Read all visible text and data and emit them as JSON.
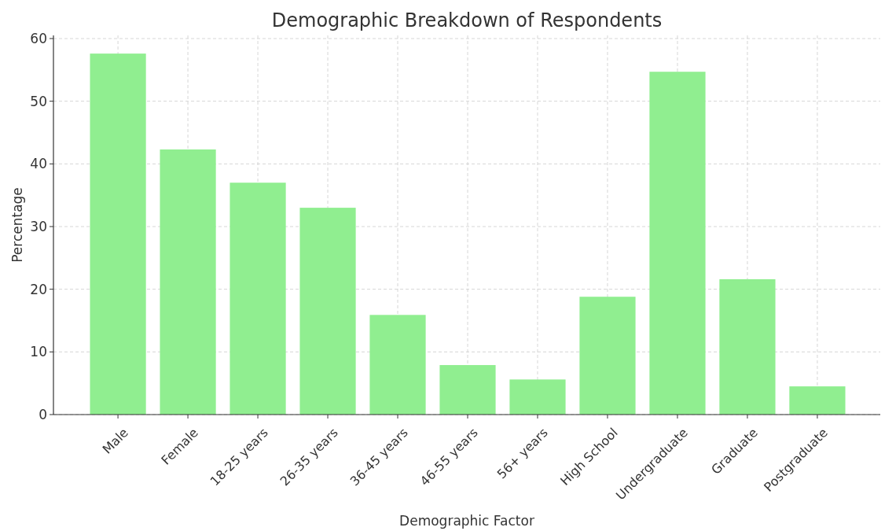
{
  "chart_data": {
    "type": "bar",
    "title": "Demographic Breakdown of Respondents",
    "xlabel": "Demographic Factor",
    "ylabel": "Percentage",
    "categories": [
      "Male",
      "Female",
      "18-25 years",
      "26-35 years",
      "36-45 years",
      "46-55 years",
      "56+ years",
      "High School",
      "Undergraduate",
      "Graduate",
      "Postgraduate"
    ],
    "values": [
      57.6,
      42.3,
      37.0,
      33.0,
      15.9,
      7.9,
      5.6,
      18.8,
      54.7,
      21.6,
      4.5
    ],
    "color": "#90ee90",
    "ylim": [
      0,
      60
    ],
    "yticks": [
      0,
      10,
      20,
      30,
      40,
      50,
      60
    ],
    "grid": true
  }
}
